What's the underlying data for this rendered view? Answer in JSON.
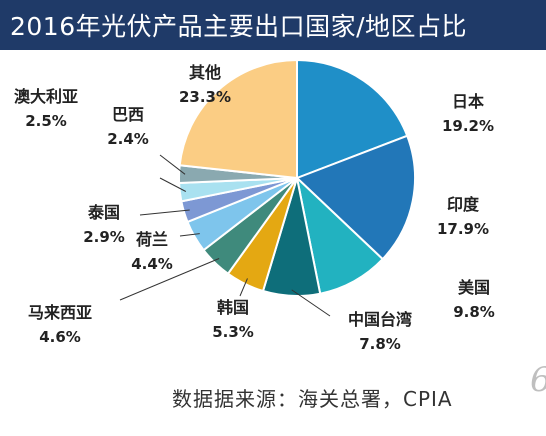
{
  "title": "2016年光伏产品主要出口国家/地区占比",
  "source": "数据据来源：海关总署，CPIA",
  "corner_mark": "6",
  "chart_data": {
    "type": "pie",
    "title": "2016年光伏产品主要出口国家/地区占比",
    "slices": [
      {
        "label": "日本",
        "value": 19.2,
        "display": "19.2%",
        "color": "#1f8fc8"
      },
      {
        "label": "印度",
        "value": 17.9,
        "display": "17.9%",
        "color": "#2277b8"
      },
      {
        "label": "美国",
        "value": 9.8,
        "display": "9.8%",
        "color": "#22b2c0"
      },
      {
        "label": "中国台湾",
        "value": 7.8,
        "display": "7.8%",
        "color": "#0e6e7a"
      },
      {
        "label": "韩国",
        "value": 5.3,
        "display": "5.3%",
        "color": "#e4a812"
      },
      {
        "label": "马来西亚",
        "value": 4.6,
        "display": "4.6%",
        "color": "#3f8a7c"
      },
      {
        "label": "荷兰",
        "value": 4.4,
        "display": "4.4%",
        "color": "#7ec5ec"
      },
      {
        "label": "泰国",
        "value": 2.9,
        "display": "2.9%",
        "color": "#7d98d4"
      },
      {
        "label": "澳大利亚",
        "value": 2.5,
        "display": "2.5%",
        "color": "#a9e1f0"
      },
      {
        "label": "巴西",
        "value": 2.4,
        "display": "2.4%",
        "color": "#8aa9b0"
      },
      {
        "label": "其他",
        "value": 23.3,
        "display": "23.3%",
        "color": "#fbcd84"
      }
    ]
  }
}
